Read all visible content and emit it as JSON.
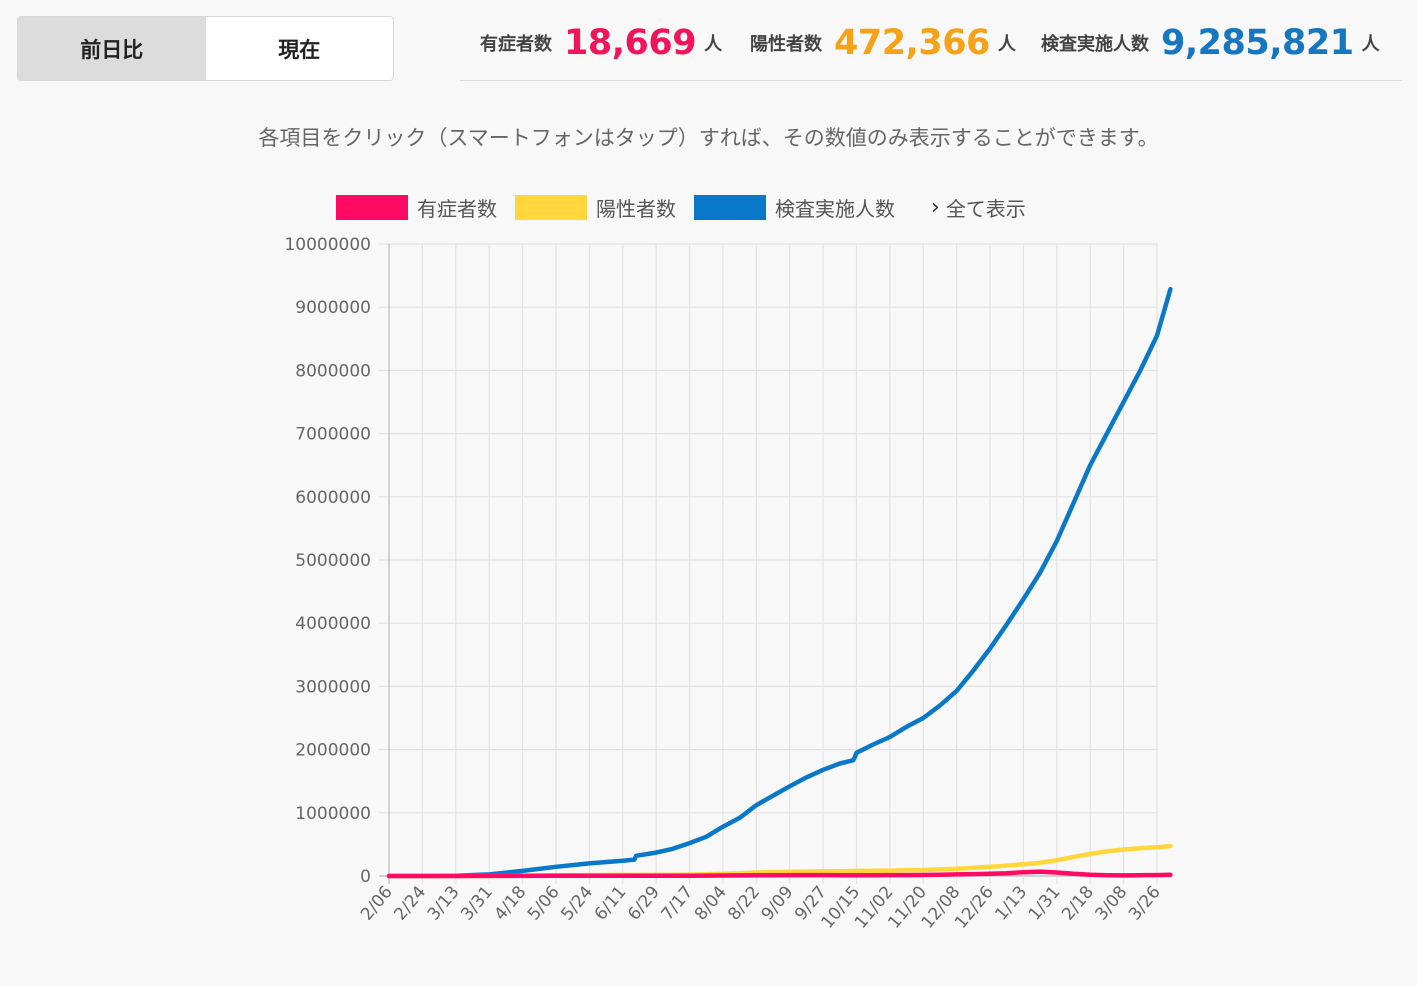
{
  "toggle": {
    "options": [
      "前日比",
      "現在"
    ],
    "active_index": 0
  },
  "stats": [
    {
      "label": "有症者数",
      "value": "18,669",
      "unit": "人",
      "color": "#f0145a"
    },
    {
      "label": "陽性者数",
      "value": "472,366",
      "unit": "人",
      "color": "#f5a218"
    },
    {
      "label": "検査実施人数",
      "value": "9,285,821",
      "unit": "人",
      "color": "#1677c0"
    }
  ],
  "instruction": "各項目をクリック（スマートフォンはタップ）すれば、その数値のみ表示することができます。",
  "legend": {
    "items": [
      {
        "label": "有症者数",
        "color": "#ff0a64"
      },
      {
        "label": "陽性者数",
        "color": "#ffd73c"
      },
      {
        "label": "検査実施人数",
        "color": "#0a78c8"
      }
    ],
    "show_all": "全て表示",
    "show_all_icon": "chevron-right-icon"
  },
  "chart_data": {
    "type": "line",
    "title": "",
    "xlabel": "",
    "ylabel": "",
    "ylim": [
      0,
      10000000
    ],
    "y_ticks": [
      0,
      1000000,
      2000000,
      3000000,
      4000000,
      5000000,
      6000000,
      7000000,
      8000000,
      9000000,
      10000000
    ],
    "x_tick_labels": [
      "2/06",
      "2/24",
      "3/13",
      "3/31",
      "4/18",
      "5/06",
      "5/24",
      "6/11",
      "6/29",
      "7/17",
      "8/04",
      "8/22",
      "9/09",
      "9/27",
      "10/15",
      "11/02",
      "11/20",
      "12/08",
      "12/26",
      "1/13",
      "1/31",
      "2/18",
      "3/08",
      "3/26"
    ],
    "x": [
      0,
      1,
      2,
      3,
      4,
      5,
      6,
      7,
      7.35,
      7.4,
      8,
      8.5,
      9,
      9.5,
      10,
      10.5,
      11,
      11.5,
      12,
      12.5,
      13,
      13.5,
      13.9,
      13.95,
      14,
      14.5,
      15,
      15.5,
      16,
      16.5,
      17,
      17.5,
      18,
      18.5,
      19,
      19.5,
      20,
      20.5,
      21,
      21.5,
      22,
      22.5,
      23,
      23.4
    ],
    "grid": true,
    "series": [
      {
        "name": "有症者数",
        "color": "#ff0a64",
        "values": [
          0,
          0,
          500,
          1000,
          2000,
          2500,
          3000,
          3500,
          3600,
          3700,
          4000,
          4500,
          5500,
          6500,
          8000,
          10000,
          12000,
          13000,
          13500,
          13500,
          13500,
          13000,
          13000,
          13000,
          13000,
          13000,
          13500,
          14000,
          16000,
          20000,
          25000,
          30000,
          35000,
          45000,
          60000,
          70000,
          55000,
          35000,
          20000,
          12000,
          10000,
          12000,
          15000,
          18669
        ]
      },
      {
        "name": "陽性者数",
        "color": "#ffd73c",
        "values": [
          0,
          0,
          500,
          2000,
          7000,
          12000,
          15000,
          17000,
          17500,
          17800,
          19000,
          20000,
          22000,
          27000,
          35000,
          45000,
          55000,
          62000,
          66000,
          70000,
          74000,
          77000,
          79000,
          79500,
          80000,
          83000,
          86000,
          90000,
          95000,
          105000,
          115000,
          130000,
          145000,
          165000,
          185000,
          210000,
          250000,
          300000,
          350000,
          390000,
          420000,
          440000,
          455000,
          472366
        ]
      },
      {
        "name": "検査実施人数",
        "color": "#0a78c8",
        "values": [
          0,
          0,
          5000,
          25000,
          80000,
          145000,
          200000,
          240000,
          260000,
          320000,
          370000,
          430000,
          520000,
          620000,
          780000,
          920000,
          1120000,
          1270000,
          1420000,
          1560000,
          1680000,
          1780000,
          1830000,
          1880000,
          1950000,
          2080000,
          2200000,
          2360000,
          2500000,
          2700000,
          2930000,
          3250000,
          3600000,
          3980000,
          4380000,
          4800000,
          5300000,
          5900000,
          6500000,
          7000000,
          7500000,
          8000000,
          8550000,
          9285821
        ]
      }
    ]
  }
}
